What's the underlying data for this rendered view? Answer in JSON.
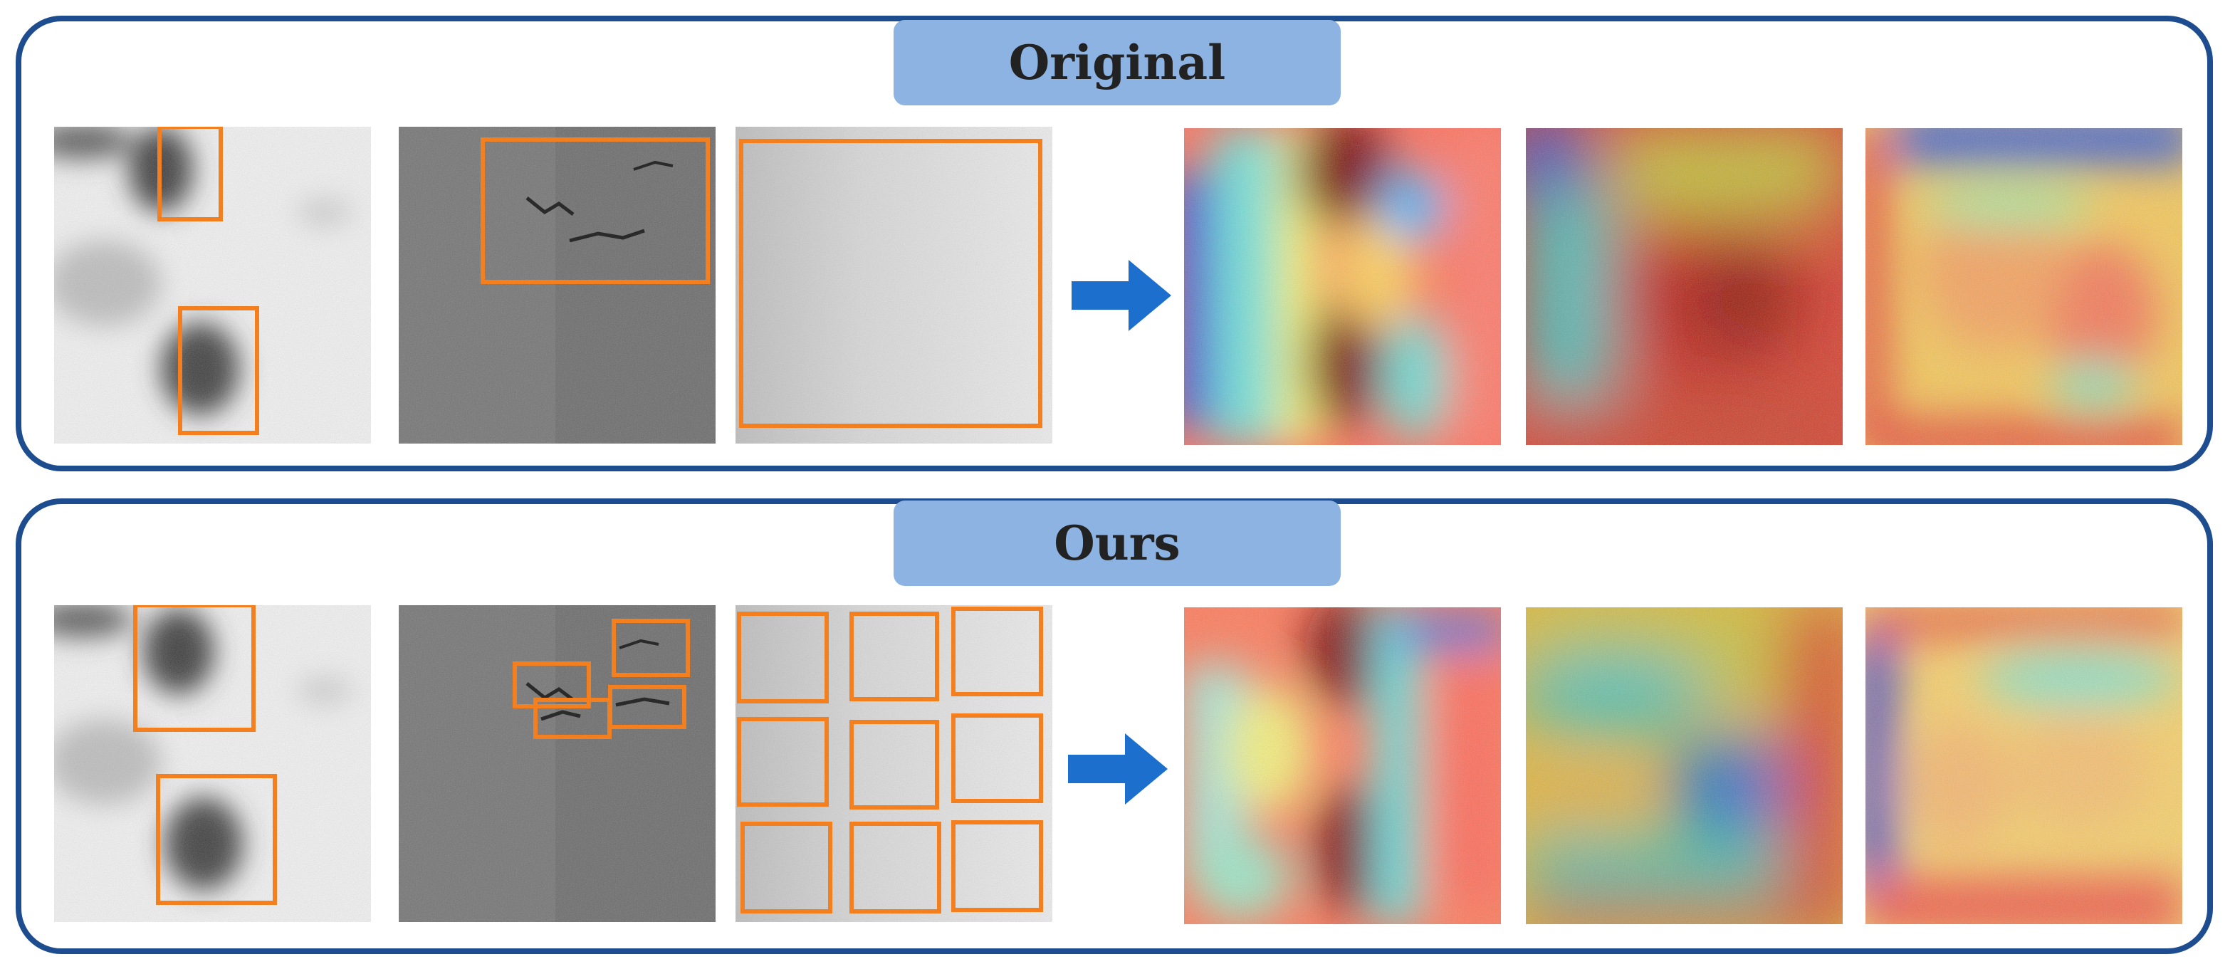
{
  "panels": {
    "original": {
      "title": "Original"
    },
    "ours": {
      "title": "Ours"
    }
  },
  "colors": {
    "panel_border": "#1d4d8f",
    "title_fill": "#8db3e2",
    "box": "#f47f1f",
    "arrow": "#1d6fcd"
  }
}
